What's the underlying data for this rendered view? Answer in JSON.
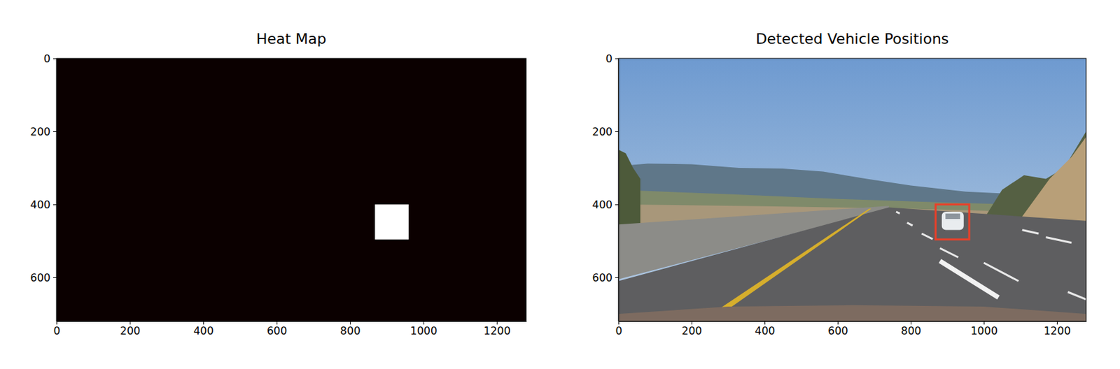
{
  "chart_data": [
    {
      "type": "heatmap",
      "title": "Heat Map",
      "xlim": [
        0,
        1280
      ],
      "ylim": [
        720,
        0
      ],
      "xticks": [
        0,
        200,
        400,
        600,
        800,
        1000,
        1200
      ],
      "yticks": [
        0,
        200,
        400,
        600
      ],
      "boxes": [
        {
          "x0": 868,
          "x1": 960,
          "y0": 400,
          "y1": 496,
          "color": "#ffffff"
        }
      ]
    },
    {
      "type": "image",
      "title": "Detected Vehicle Positions",
      "xlim": [
        0,
        1280
      ],
      "ylim": [
        720,
        0
      ],
      "xticks": [
        0,
        200,
        400,
        600,
        800,
        1000,
        1200
      ],
      "yticks": [
        0,
        200,
        400,
        600
      ],
      "boxes": [
        {
          "x0": 868,
          "x1": 960,
          "y0": 400,
          "y1": 496,
          "color": "#e8402a"
        }
      ]
    }
  ]
}
